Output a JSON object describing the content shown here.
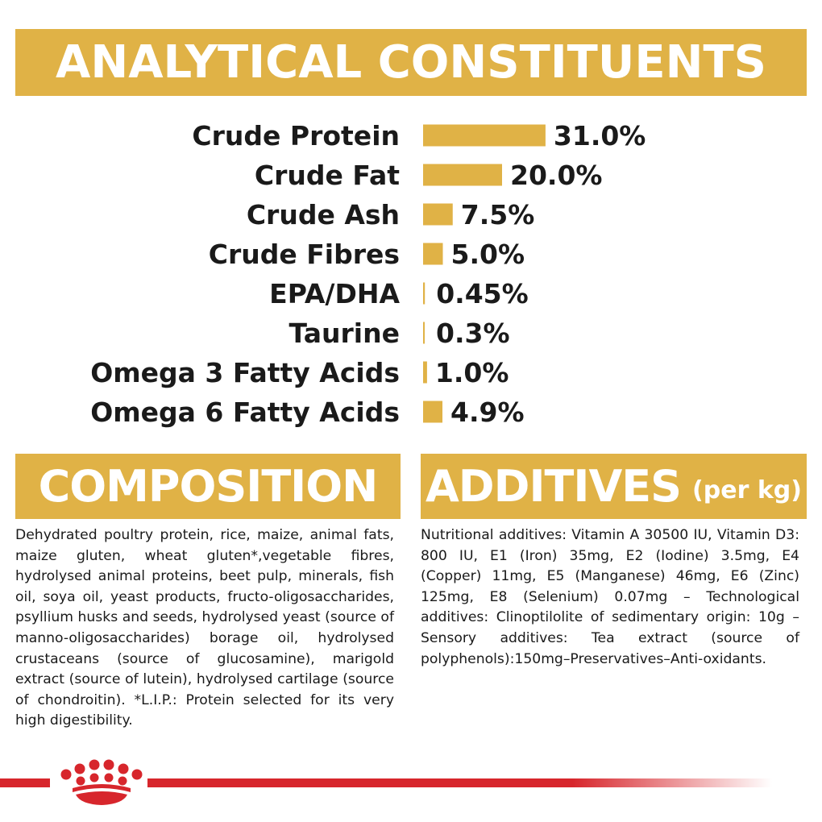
{
  "headers": {
    "analytical": "ANALYTICAL CONSTITUENTS",
    "composition": "COMPOSITION",
    "additives": "ADDITIVES",
    "additives_unit": "(per kg)"
  },
  "chart_data": {
    "type": "bar",
    "orientation": "horizontal",
    "title": "ANALYTICAL CONSTITUENTS",
    "categories": [
      "Crude Protein",
      "Crude Fat",
      "Crude Ash",
      "Crude Fibres",
      "EPA/DHA",
      "Taurine",
      "Omega 3 Fatty Acids",
      "Omega 6 Fatty Acids"
    ],
    "values": [
      31.0,
      20.0,
      7.5,
      5.0,
      0.45,
      0.3,
      1.0,
      4.9
    ],
    "value_labels": [
      "31.0%",
      "20.0%",
      "7.5%",
      "5.0%",
      "0.45%",
      "0.3%",
      "1.0%",
      "4.9%"
    ],
    "unit": "%",
    "grid": false,
    "bar_color": "#e0b246"
  },
  "composition_text": "Dehydrated poultry protein, rice, maize, animal fats, maize gluten, wheat gluten*,vegetable fibres, hydrolysed animal proteins, beet pulp, minerals, fish oil, soya oil, yeast products, fructo-oligosaccharides, psyllium husks and seeds, hydrolysed yeast (source of manno-oligosaccharides) borage oil, hydrolysed crustaceans (source of glucosamine), marigold extract (source of lutein), hydrolysed cartilage (source of chondroitin). *L.I.P.: Protein selected for its very high digestibility.",
  "additives_text": "Nutritional additives: Vitamin A 30500 IU, Vitamin D3: 800 IU, E1 (Iron) 35mg, E2 (Iodine) 3.5mg, E4 (Copper) 11mg, E5 (Manganese) 46mg, E6 (Zinc) 125mg, E8 (Selenium) 0.07mg – Technological additives: Clinoptilolite of sedimentary origin: 10g – Sensory additives: Tea extract (source of polyphenols):150mg–Preservatives–Anti-oxidants.",
  "colors": {
    "accent": "#e0b246",
    "brand_red": "#d7262c",
    "text": "#1a1a1a"
  },
  "logo": {
    "icon": "royal-canin-crown-icon"
  }
}
